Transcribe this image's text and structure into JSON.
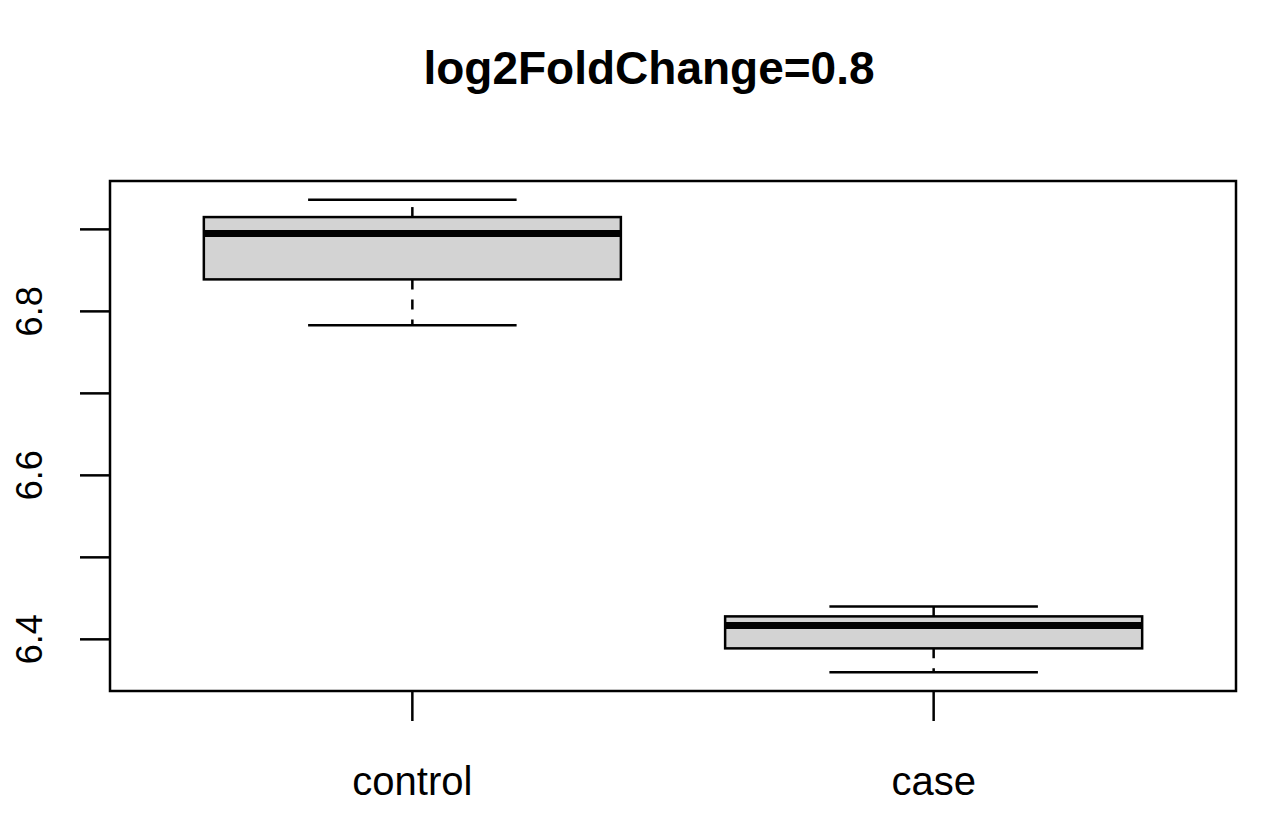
{
  "chart_data": {
    "type": "box",
    "title": "log2FoldChange=0.8",
    "categories": [
      "control",
      "case"
    ],
    "boxes": [
      {
        "min": 6.783,
        "q1": 6.839,
        "median": 6.895,
        "q3": 6.915,
        "max": 6.936
      },
      {
        "min": 6.36,
        "q1": 6.389,
        "median": 6.417,
        "q3": 6.428,
        "max": 6.44
      }
    ],
    "color": "#d3d3d3",
    "ylim": [
      6.337,
      6.959
    ],
    "yticks": [
      6.4,
      {
        "value": 6.5,
        "label": null
      },
      6.6,
      {
        "value": 6.7,
        "label": null
      },
      6.8,
      {
        "value": 6.9,
        "label": null
      }
    ],
    "grid": false
  }
}
